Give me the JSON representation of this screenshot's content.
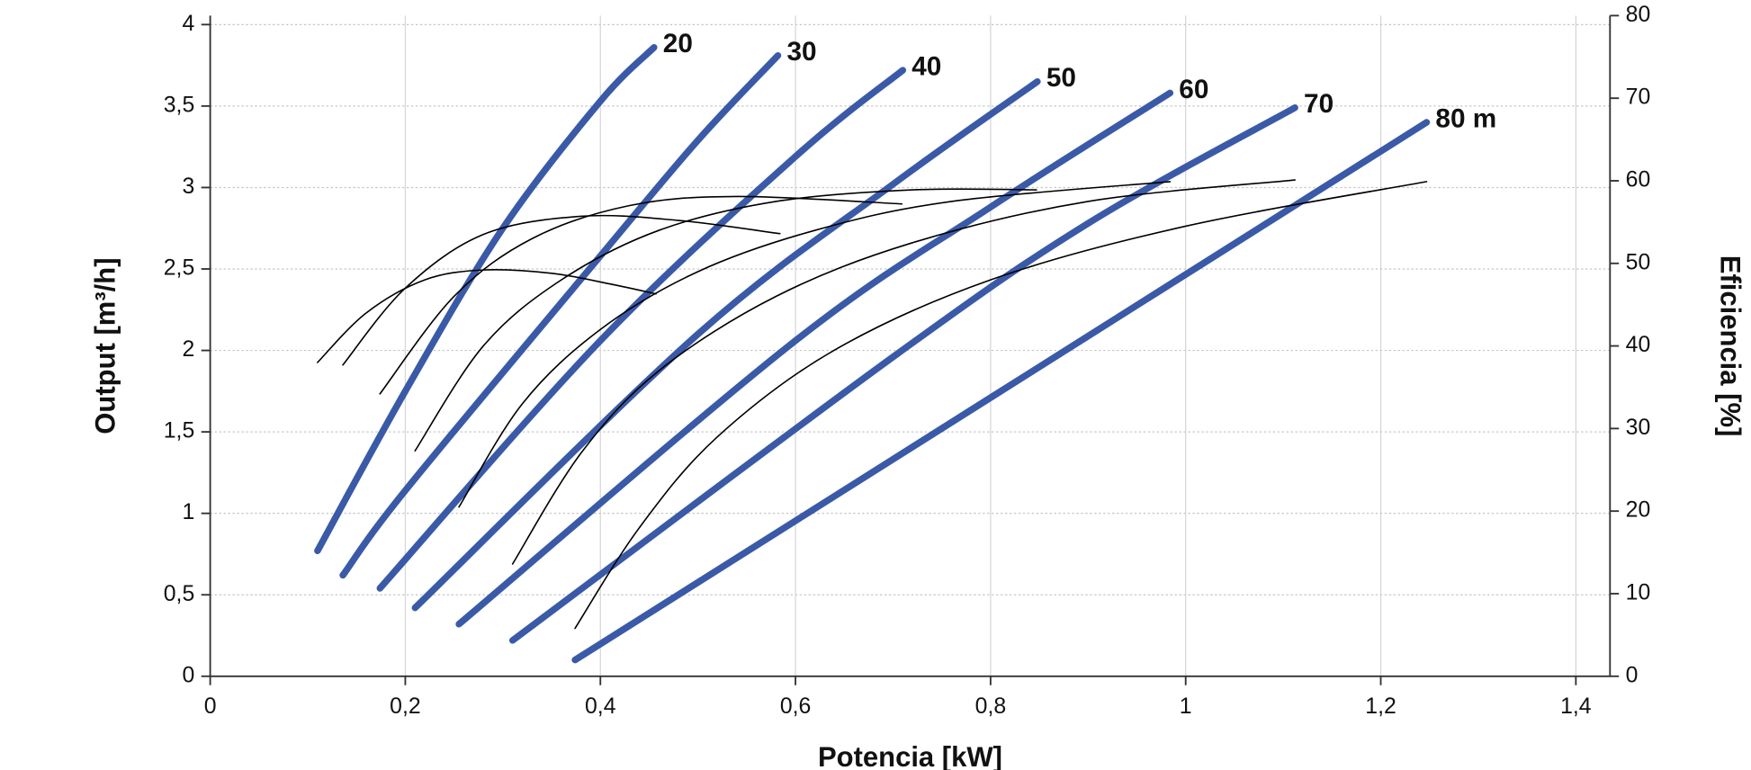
{
  "chart_data": {
    "type": "line",
    "x_label": "Potencia [kW]",
    "y_label": "Output [m³/h]",
    "y2_label": "Eficiencia [%]",
    "xlim": [
      0,
      1.435
    ],
    "ylim": [
      0,
      4.055
    ],
    "y2lim": [
      0,
      80
    ],
    "xticks": [
      0,
      {
        "value": 0.2,
        "label": "0,2"
      },
      {
        "value": 0.4,
        "label": "0,4"
      },
      {
        "value": 0.6,
        "label": "0,6"
      },
      {
        "value": 0.8,
        "label": "0,8"
      },
      1,
      {
        "value": 1.2,
        "label": "1,2"
      },
      {
        "value": 1.4,
        "label": "1,4"
      }
    ],
    "yticks": [
      0,
      {
        "value": 0.5,
        "label": "0,5"
      },
      1,
      {
        "value": 1.5,
        "label": "1,5"
      },
      2,
      {
        "value": 2.5,
        "label": "2,5"
      },
      3,
      {
        "value": 3.5,
        "label": "3,5"
      },
      4
    ],
    "y2ticks": [
      0,
      10,
      20,
      30,
      40,
      50,
      60,
      70,
      80
    ],
    "grid": true,
    "series": [
      {
        "name": "20",
        "color": "#3a5aa8",
        "x": [
          0.11,
          0.2,
          0.3,
          0.4,
          0.455
        ],
        "values": [
          0.77,
          1.75,
          2.75,
          3.53,
          3.86
        ]
      },
      {
        "name": "30",
        "color": "#3a5aa8",
        "x": [
          0.136,
          0.2,
          0.4,
          0.5,
          0.582
        ],
        "values": [
          0.62,
          1.14,
          2.58,
          3.29,
          3.81
        ]
      },
      {
        "name": "40",
        "color": "#3a5aa8",
        "x": [
          0.174,
          0.4,
          0.6,
          0.71
        ],
        "values": [
          0.54,
          2.06,
          3.19,
          3.72
        ]
      },
      {
        "name": "50",
        "color": "#3a5aa8",
        "x": [
          0.21,
          0.5,
          0.7,
          0.848
        ],
        "values": [
          0.42,
          2.1,
          3.02,
          3.65
        ]
      },
      {
        "name": "60",
        "color": "#3a5aa8",
        "x": [
          0.255,
          0.6,
          0.8,
          0.984
        ],
        "values": [
          0.32,
          2.06,
          2.88,
          3.58
        ]
      },
      {
        "name": "70",
        "color": "#3a5aa8",
        "x": [
          0.31,
          0.7,
          0.9,
          1.112
        ],
        "values": [
          0.22,
          1.96,
          2.78,
          3.49
        ]
      },
      {
        "name": "80 m",
        "color": "#3a5aa8",
        "x": [
          0.374,
          0.8,
          1.247
        ],
        "values": [
          0.1,
          1.71,
          3.4
        ]
      },
      {
        "axis": "y2",
        "color": "#000000",
        "x": [
          0.11,
          0.16,
          0.22,
          0.28,
          0.35,
          0.41,
          0.457
        ],
        "values": [
          38,
          44,
          48,
          49.2,
          48.8,
          47.5,
          46.3
        ]
      },
      {
        "axis": "y2",
        "color": "#000000",
        "x": [
          0.136,
          0.2,
          0.28,
          0.38,
          0.48,
          0.584
        ],
        "values": [
          37.7,
          47,
          53.5,
          55.7,
          55.2,
          53.6
        ]
      },
      {
        "axis": "y2",
        "color": "#000000",
        "x": [
          0.174,
          0.25,
          0.33,
          0.43,
          0.54,
          0.709
        ],
        "values": [
          34.2,
          46,
          53,
          57,
          58.1,
          57.2
        ]
      },
      {
        "axis": "y2",
        "color": "#000000",
        "x": [
          0.21,
          0.28,
          0.36,
          0.46,
          0.58,
          0.72,
          0.847
        ],
        "values": [
          27.3,
          40,
          48,
          54,
          57.5,
          58.9,
          58.9
        ]
      },
      {
        "axis": "y2",
        "color": "#000000",
        "x": [
          0.255,
          0.32,
          0.4,
          0.5,
          0.62,
          0.76,
          0.984
        ],
        "values": [
          20.5,
          33,
          42,
          49,
          54,
          57.5,
          59.9
        ]
      },
      {
        "axis": "y2",
        "color": "#000000",
        "x": [
          0.31,
          0.38,
          0.46,
          0.58,
          0.72,
          0.9,
          1.112
        ],
        "values": [
          13.6,
          27,
          37,
          46,
          52.5,
          57.5,
          60.1
        ]
      },
      {
        "axis": "y2",
        "color": "#000000",
        "x": [
          0.374,
          0.44,
          0.52,
          0.64,
          0.8,
          1.0,
          1.247
        ],
        "values": [
          5.8,
          18,
          29,
          39.5,
          48,
          54.5,
          59.9
        ]
      }
    ]
  }
}
